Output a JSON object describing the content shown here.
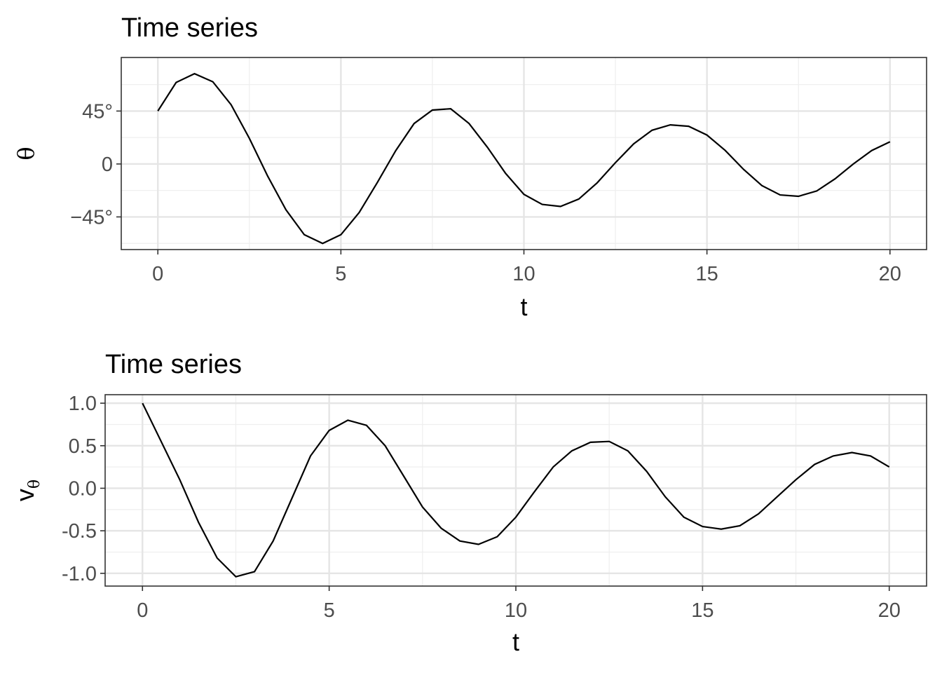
{
  "chart_data": [
    {
      "type": "line",
      "title": "Time series",
      "xlabel": "t",
      "ylabel": "θ",
      "xlim": [
        -1,
        21
      ],
      "ylim": [
        -1.27,
        1.58
      ],
      "x_ticks": [
        0,
        5,
        10,
        15,
        20
      ],
      "x_tick_labels": [
        "0",
        "5",
        "10",
        "15",
        "20"
      ],
      "y_ticks": [
        -0.785398,
        0,
        0.785398
      ],
      "y_tick_labels": [
        "−45°",
        "0",
        "45°"
      ],
      "y_unit": "radians",
      "grid": true,
      "series": [
        {
          "x": [
            0,
            0.5,
            1.0,
            1.5,
            2.0,
            2.5,
            3.0,
            3.5,
            4.0,
            4.5,
            5.0,
            5.5,
            6.0,
            6.5,
            7.0,
            7.5,
            8.0,
            8.5,
            9.0,
            9.5,
            10.0,
            10.5,
            11.0,
            11.5,
            12.0,
            12.5,
            13.0,
            13.5,
            14.0,
            14.5,
            15.0,
            15.5,
            16.0,
            16.5,
            17.0,
            17.5,
            18.0,
            18.5,
            19.0,
            19.5,
            20.0
          ],
          "y": [
            0.785,
            1.21,
            1.34,
            1.22,
            0.88,
            0.38,
            -0.18,
            -0.68,
            -1.05,
            -1.18,
            -1.05,
            -0.72,
            -0.27,
            0.2,
            0.6,
            0.8,
            0.82,
            0.6,
            0.25,
            -0.14,
            -0.45,
            -0.6,
            -0.63,
            -0.52,
            -0.28,
            0.02,
            0.3,
            0.5,
            0.58,
            0.56,
            0.43,
            0.2,
            -0.08,
            -0.32,
            -0.46,
            -0.48,
            -0.4,
            -0.22,
            0.0,
            0.2,
            0.33
          ]
        }
      ]
    },
    {
      "type": "line",
      "title": "Time series",
      "xlabel": "t",
      "ylabel": "v",
      "ylabel_subscript": "θ",
      "xlim": [
        -1,
        21
      ],
      "ylim": [
        -1.15,
        1.1
      ],
      "x_ticks": [
        0,
        5,
        10,
        15,
        20
      ],
      "x_tick_labels": [
        "0",
        "5",
        "10",
        "15",
        "20"
      ],
      "y_ticks": [
        -1.0,
        -0.5,
        0.0,
        0.5,
        1.0
      ],
      "y_tick_labels": [
        "-1.0",
        "-0.5",
        "0.0",
        "0.5",
        "1.0"
      ],
      "grid": true,
      "series": [
        {
          "x": [
            0,
            0.5,
            1.0,
            1.5,
            2.0,
            2.5,
            3.0,
            3.5,
            4.0,
            4.5,
            5.0,
            5.5,
            6.0,
            6.5,
            7.0,
            7.5,
            8.0,
            8.5,
            9.0,
            9.5,
            10.0,
            10.5,
            11.0,
            11.5,
            12.0,
            12.5,
            13.0,
            13.5,
            14.0,
            14.5,
            15.0,
            15.5,
            16.0,
            16.5,
            17.0,
            17.5,
            18.0,
            18.5,
            19.0,
            19.5,
            20.0
          ],
          "y": [
            1.0,
            0.55,
            0.1,
            -0.4,
            -0.82,
            -1.04,
            -0.98,
            -0.62,
            -0.12,
            0.38,
            0.68,
            0.8,
            0.74,
            0.5,
            0.14,
            -0.22,
            -0.47,
            -0.62,
            -0.66,
            -0.57,
            -0.34,
            -0.04,
            0.25,
            0.44,
            0.54,
            0.55,
            0.44,
            0.2,
            -0.1,
            -0.34,
            -0.45,
            -0.48,
            -0.44,
            -0.3,
            -0.1,
            0.1,
            0.28,
            0.38,
            0.42,
            0.38,
            0.25
          ]
        }
      ]
    }
  ]
}
